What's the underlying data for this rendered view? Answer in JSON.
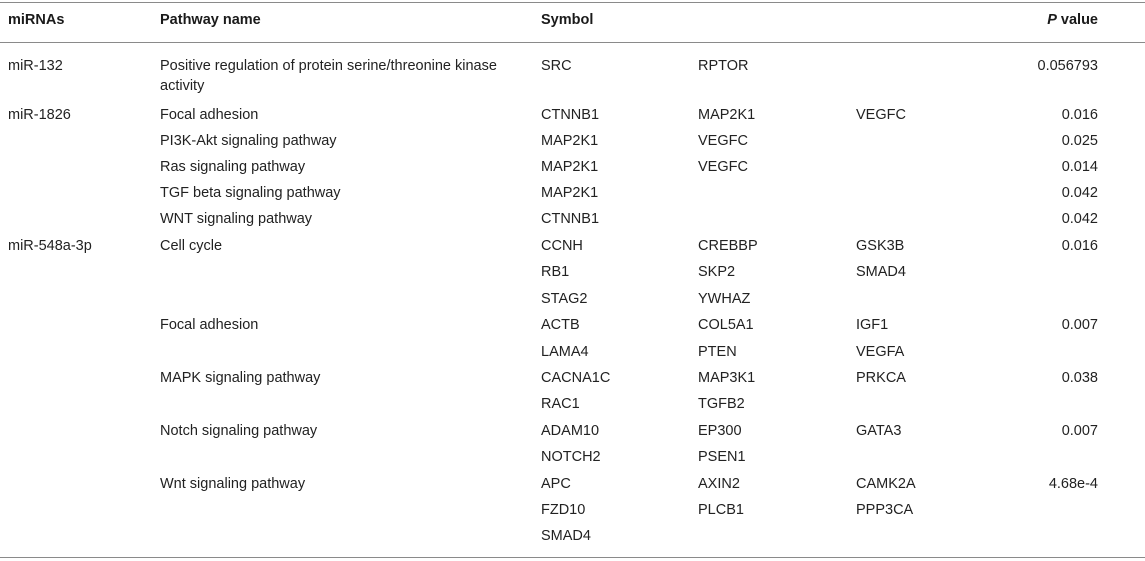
{
  "headers": {
    "mirna": "miRNAs",
    "pathway": "Pathway name",
    "symbol": "Symbol",
    "p_italic": "P",
    "p_rest": " value"
  },
  "rows": [
    {
      "mirna": "miR-132",
      "pathway": "Positive regulation of protein serine/threonine kinase activity",
      "s1": "SRC",
      "s2": "RPTOR",
      "s3": "",
      "p": "0.056793"
    },
    {
      "mirna": "miR-1826",
      "pathway": "Focal adhesion",
      "s1": "CTNNB1",
      "s2": "MAP2K1",
      "s3": "VEGFC",
      "p": "0.016"
    },
    {
      "mirna": "",
      "pathway": "PI3K-Akt signaling pathway",
      "s1": "MAP2K1",
      "s2": "VEGFC",
      "s3": "",
      "p": "0.025"
    },
    {
      "mirna": "",
      "pathway": "Ras signaling pathway",
      "s1": "MAP2K1",
      "s2": "VEGFC",
      "s3": "",
      "p": "0.014"
    },
    {
      "mirna": "",
      "pathway": "TGF beta signaling pathway",
      "s1": "MAP2K1",
      "s2": "",
      "s3": "",
      "p": "0.042"
    },
    {
      "mirna": "",
      "pathway": "WNT signaling pathway",
      "s1": "CTNNB1",
      "s2": "",
      "s3": "",
      "p": "0.042"
    },
    {
      "mirna": "miR-548a-3p",
      "pathway": "Cell cycle",
      "s1": "CCNH",
      "s2": "CREBBP",
      "s3": "GSK3B",
      "p": "0.016"
    },
    {
      "mirna": "",
      "pathway": "",
      "s1": "RB1",
      "s2": "SKP2",
      "s3": "SMAD4",
      "p": ""
    },
    {
      "mirna": "",
      "pathway": "",
      "s1": "STAG2",
      "s2": "YWHAZ",
      "s3": "",
      "p": ""
    },
    {
      "mirna": "",
      "pathway": "Focal adhesion",
      "s1": "ACTB",
      "s2": "COL5A1",
      "s3": "IGF1",
      "p": "0.007"
    },
    {
      "mirna": "",
      "pathway": "",
      "s1": "LAMA4",
      "s2": "PTEN",
      "s3": "VEGFA",
      "p": ""
    },
    {
      "mirna": "",
      "pathway": "MAPK signaling pathway",
      "s1": "CACNA1C",
      "s2": "MAP3K1",
      "s3": "PRKCA",
      "p": "0.038"
    },
    {
      "mirna": "",
      "pathway": "",
      "s1": "RAC1",
      "s2": "TGFB2",
      "s3": "",
      "p": ""
    },
    {
      "mirna": "",
      "pathway": "Notch signaling pathway",
      "s1": "ADAM10",
      "s2": "EP300",
      "s3": "GATA3",
      "p": "0.007"
    },
    {
      "mirna": "",
      "pathway": "",
      "s1": "NOTCH2",
      "s2": "PSEN1",
      "s3": "",
      "p": ""
    },
    {
      "mirna": "",
      "pathway": "Wnt signaling pathway",
      "s1": "APC",
      "s2": "AXIN2",
      "s3": "CAMK2A",
      "p": "4.68e-4"
    },
    {
      "mirna": "",
      "pathway": "",
      "s1": "FZD10",
      "s2": "PLCB1",
      "s3": "PPP3CA",
      "p": ""
    },
    {
      "mirna": "",
      "pathway": "",
      "s1": "SMAD4",
      "s2": "",
      "s3": "",
      "p": ""
    }
  ]
}
